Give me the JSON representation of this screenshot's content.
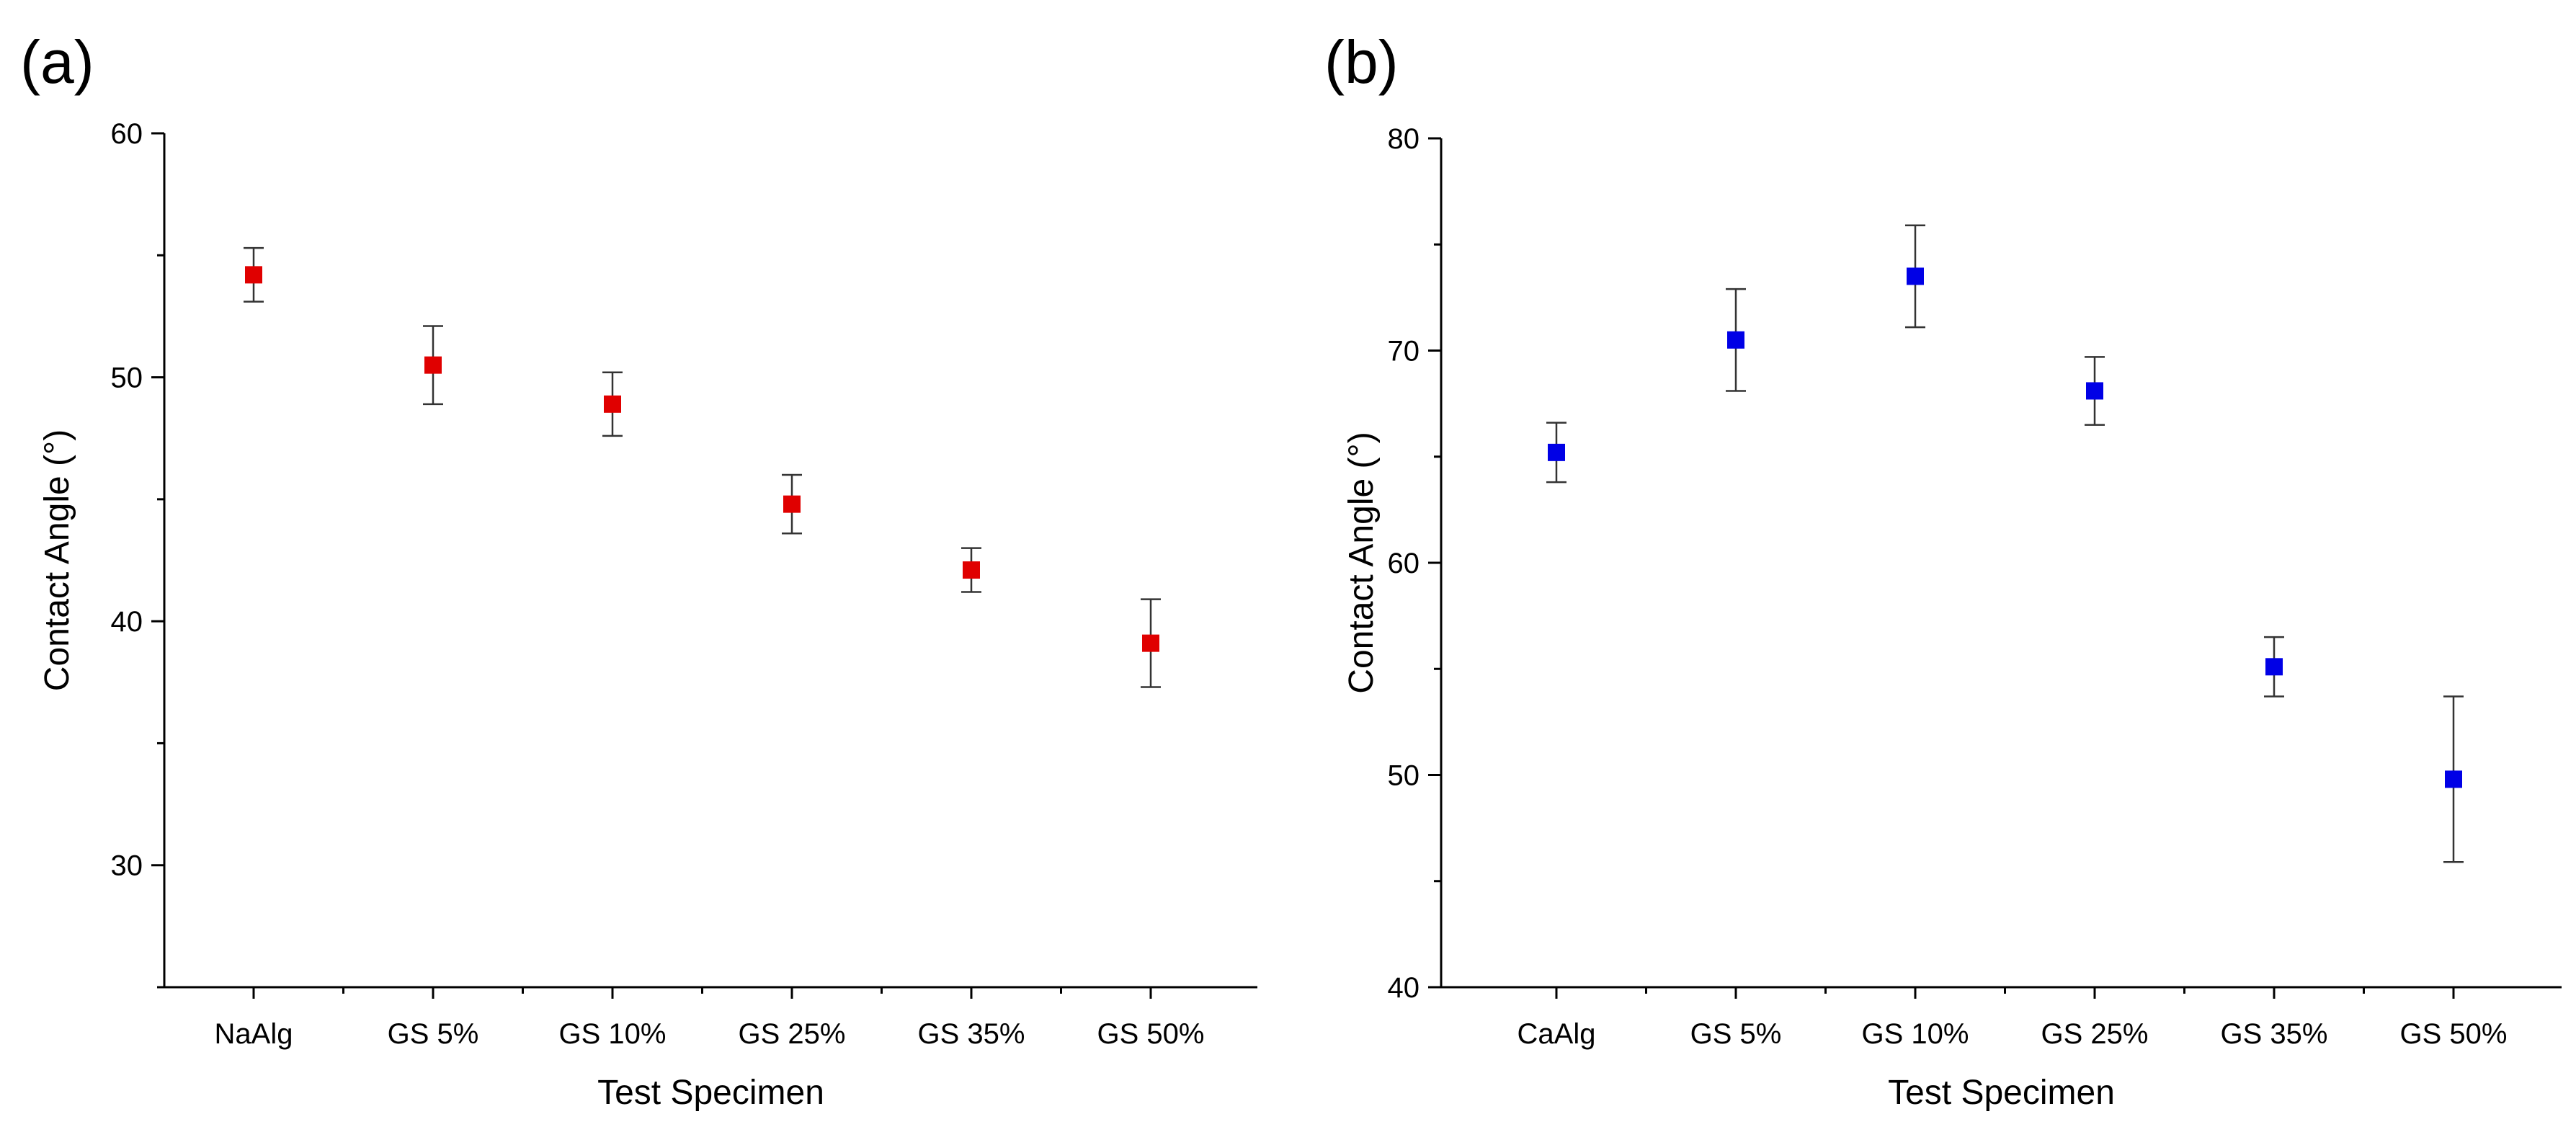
{
  "chart_data": [
    {
      "panel_label": "(a)",
      "type": "scatter",
      "marker": "square",
      "color": "#e00000",
      "categories": [
        "NaAlg",
        "GS 5%",
        "GS 10%",
        "GS 25%",
        "GS 35%",
        "GS 50%"
      ],
      "values": [
        54.2,
        50.5,
        48.9,
        44.8,
        42.1,
        39.1
      ],
      "errors": [
        1.1,
        1.6,
        1.3,
        1.2,
        0.9,
        1.8
      ],
      "xlabel": "Test Specimen",
      "ylabel": "Contact Angle (°)",
      "ylim": [
        25,
        60
      ],
      "yticks": [
        30,
        40,
        50,
        60
      ],
      "ytick_labels": [
        "30",
        "40",
        "50",
        "60"
      ]
    },
    {
      "panel_label": "(b)",
      "type": "scatter",
      "marker": "square",
      "color": "#0000e6",
      "categories": [
        "CaAlg",
        "GS 5%",
        "GS 10%",
        "GS 25%",
        "GS 35%",
        "GS 50%"
      ],
      "values": [
        65.2,
        70.5,
        73.5,
        68.1,
        55.1,
        49.8
      ],
      "errors": [
        1.4,
        2.4,
        2.4,
        1.6,
        1.4,
        3.9
      ],
      "xlabel": "Test Specimen",
      "ylabel": "Contact Angle (°)",
      "ylim": [
        40,
        80
      ],
      "yticks": [
        40,
        50,
        60,
        70,
        80
      ],
      "ytick_labels": [
        "40",
        "50",
        "60",
        "70",
        "80"
      ]
    }
  ]
}
